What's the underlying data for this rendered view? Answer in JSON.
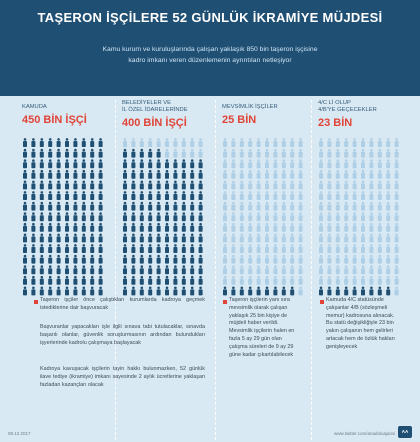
{
  "header": {
    "title": "TAŞERON İŞÇİLERE 52 GÜNLÜK İKRAMİYE MÜJDESİ",
    "subtitle_line1": "Kamu kurum ve kuruluşlarında çalışan yaklaşık 850 bin taşeron işçisine",
    "subtitle_line2": "kadro imkanı veren düzenlemenin ayrıntıları netleşiyor"
  },
  "columns": [
    {
      "label_line1": "KAMUDA",
      "label_line2": "",
      "value": "450 BİN İŞÇİ",
      "figures": 150,
      "dark_fraction": 1.0
    },
    {
      "label_line1": "BELEDİYELER VE",
      "label_line2": "İL ÖZEL İDARELERİNDE",
      "value": "400 BİN İŞÇİ",
      "figures": 150,
      "dark_fraction": 0.9
    },
    {
      "label_line1": "MEVSİMLİK İŞÇİLER",
      "label_line2": "",
      "value": "25 BİN",
      "figures": 150,
      "dark_fraction": 0.06
    },
    {
      "label_line1": "4/C Lİ OLUP",
      "label_line2": "4/B'YE GEÇECEKLER",
      "value": "23 BİN",
      "figures": 150,
      "dark_fraction": 0.06
    }
  ],
  "notes": {
    "left_p1": "Taşeron işçiler önce çalıştıkları kurumlarda kadroya geçmek istediklerine dair başvuracak",
    "left_p2": "Başvuranlar yapacakları işle ilgili sınava tabi tutulacaklar, sınavda başarılı olanlar, güvenlik soruşturmasının ardından bulundukları işyerlerinde kadrolu çalışmaya başlayacak",
    "left_p3": "Kadroya kavuşacak işçilerin tayin hakkı bulunmazken, 52 günlük ilave tediye (ikramiye) imkanı sayesinde 2 aylık ücretlerine yaklaşan fazladan kazançları olacak",
    "col3": "Taşeron işçilerin yanı sıra mevsimlik olarak çalışan yaklaşık 25 bin kişiye de müjdeli haber verildi. Mevsimlik işçilerin halen en fazla 5 ay 29 gün olan çalışma süreleri de 9 ay 29 güne kadar çıkartılabilecek",
    "col4": "Kamuda 4/C statüsünde çalışanlar 4/B (sözleşmeli memur) kadrosuna alınacak. Bu statü değişikliğiyle 23 bin yakın çalışanın hem gelirleri artacak hem de özlük hakları genişleyecek"
  },
  "footer": {
    "date": "08.12.2017",
    "url": "www.twitter.com/anadoluajansi",
    "logo": "AA"
  },
  "colors": {
    "dark": "#1f4f73",
    "light": "#aecfe6",
    "accent": "#e04438"
  }
}
